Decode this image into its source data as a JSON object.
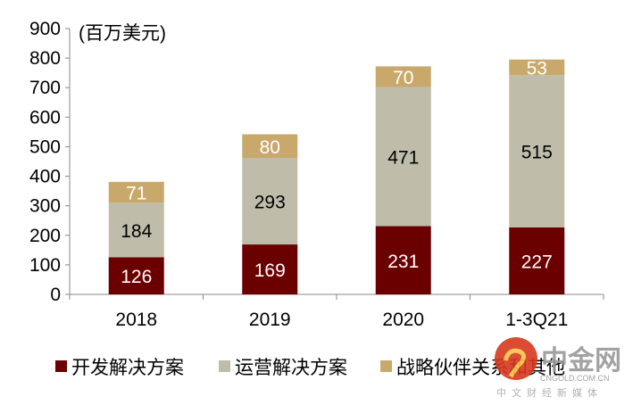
{
  "chart_data": {
    "type": "bar",
    "stacked": true,
    "unit_label": "(百万美元)",
    "categories": [
      "2018",
      "2019",
      "2020",
      "1-3Q21"
    ],
    "series": [
      {
        "name": "开发解决方案",
        "values": [
          126,
          169,
          231,
          227
        ],
        "color": "#6B0000",
        "label_color": "#FFFFFF"
      },
      {
        "name": "运营解决方案",
        "values": [
          184,
          293,
          471,
          515
        ],
        "color": "#BFBDAA",
        "label_color": "#000000"
      },
      {
        "name": "战略伙伴关系和其他",
        "values": [
          71,
          80,
          70,
          53
        ],
        "color": "#C9A86C",
        "label_color": "#FFFFFF"
      }
    ],
    "ylim": [
      0,
      900
    ],
    "yticks": [
      0,
      100,
      200,
      300,
      400,
      500,
      600,
      700,
      800,
      900
    ],
    "grid": false,
    "legend_position": "bottom"
  },
  "watermark": {
    "logo_text": "中金网",
    "domain": "CNGOLD.COM.CN",
    "tagline": "中文财经新媒体"
  }
}
